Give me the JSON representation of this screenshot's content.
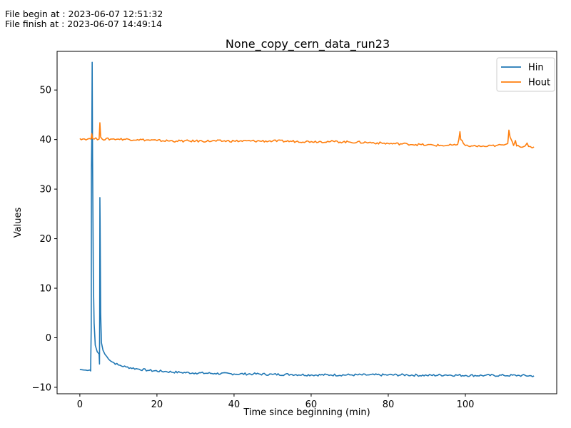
{
  "header": {
    "begin_label": "File begin at : ",
    "begin_time": "2023-06-07 12:51:32",
    "finish_label": "File finish at : ",
    "finish_time": "2023-06-07 14:49:14"
  },
  "chart_data": {
    "type": "line",
    "title": "None_copy_cern_data_run23",
    "xlabel": "Time since beginning (min)",
    "ylabel": "Values",
    "xlim": [
      -5.9,
      123.7
    ],
    "ylim": [
      -11.3,
      57.8
    ],
    "xticks": [
      0,
      20,
      40,
      60,
      80,
      100
    ],
    "yticks": [
      -10,
      0,
      10,
      20,
      30,
      40,
      50
    ],
    "grid": false,
    "legend_position": "top-right",
    "series": [
      {
        "name": "Hin",
        "color": "#1f77b4",
        "points": [
          [
            0,
            -6.4
          ],
          [
            1,
            -6.5
          ],
          [
            2,
            -6.6
          ],
          [
            2.6,
            -6.5
          ],
          [
            2.8,
            -6.7
          ],
          [
            2.95,
            2
          ],
          [
            3.0,
            34
          ],
          [
            3.1,
            40
          ],
          [
            3.2,
            55.6
          ],
          [
            3.3,
            36
          ],
          [
            3.5,
            12
          ],
          [
            3.7,
            3
          ],
          [
            4.0,
            -1.5
          ],
          [
            4.5,
            -2.8
          ],
          [
            5.0,
            -3.3
          ],
          [
            5.1,
            -5.3
          ],
          [
            5.15,
            5
          ],
          [
            5.2,
            28.3
          ],
          [
            5.25,
            24
          ],
          [
            5.4,
            5
          ],
          [
            5.6,
            -1
          ],
          [
            6,
            -2.5
          ],
          [
            7,
            -3.8
          ],
          [
            8,
            -4.7
          ],
          [
            10,
            -5.5
          ],
          [
            12,
            -5.9
          ],
          [
            15,
            -6.3
          ],
          [
            18,
            -6.6
          ],
          [
            22,
            -6.8
          ],
          [
            26,
            -7.0
          ],
          [
            30,
            -7.1
          ],
          [
            35,
            -7.2
          ],
          [
            40,
            -7.3
          ],
          [
            45,
            -7.3
          ],
          [
            50,
            -7.4
          ],
          [
            55,
            -7.4
          ],
          [
            60,
            -7.5
          ],
          [
            65,
            -7.5
          ],
          [
            70,
            -7.5
          ],
          [
            75,
            -7.5
          ],
          [
            80,
            -7.5
          ],
          [
            85,
            -7.5
          ],
          [
            90,
            -7.6
          ],
          [
            95,
            -7.5
          ],
          [
            100,
            -7.6
          ],
          [
            105,
            -7.6
          ],
          [
            110,
            -7.6
          ],
          [
            114,
            -7.6
          ],
          [
            117.8,
            -7.7
          ]
        ]
      },
      {
        "name": "Hout",
        "color": "#ff7f0e",
        "points": [
          [
            0,
            40.2
          ],
          [
            2,
            40.1
          ],
          [
            2.9,
            40.1
          ],
          [
            3.1,
            41.2
          ],
          [
            3.3,
            40.2
          ],
          [
            5.0,
            40.1
          ],
          [
            5.2,
            43.4
          ],
          [
            5.4,
            40.5
          ],
          [
            5.8,
            40.1
          ],
          [
            8,
            40.1
          ],
          [
            10,
            40.1
          ],
          [
            15,
            40.0
          ],
          [
            20,
            39.8
          ],
          [
            25,
            39.7
          ],
          [
            30,
            39.7
          ],
          [
            40,
            39.7
          ],
          [
            50,
            39.7
          ],
          [
            60,
            39.6
          ],
          [
            65,
            39.6
          ],
          [
            70,
            39.5
          ],
          [
            75,
            39.4
          ],
          [
            80,
            39.2
          ],
          [
            85,
            39.1
          ],
          [
            90,
            38.9
          ],
          [
            95,
            38.8
          ],
          [
            97.5,
            38.9
          ],
          [
            98.0,
            39.0
          ],
          [
            98.3,
            40.0
          ],
          [
            98.6,
            41.6
          ],
          [
            98.8,
            40.0
          ],
          [
            99.5,
            39.2
          ],
          [
            100,
            38.8
          ],
          [
            102,
            38.7
          ],
          [
            105,
            38.6
          ],
          [
            108,
            38.8
          ],
          [
            110,
            38.9
          ],
          [
            111,
            39.2
          ],
          [
            111.3,
            41.9
          ],
          [
            111.6,
            40.5
          ],
          [
            112.2,
            39.5
          ],
          [
            112.5,
            38.8
          ],
          [
            113.0,
            39.8
          ],
          [
            113.3,
            38.7
          ],
          [
            114,
            38.6
          ],
          [
            115.5,
            38.7
          ],
          [
            116,
            39.3
          ],
          [
            116.4,
            38.6
          ],
          [
            117.8,
            38.5
          ]
        ]
      }
    ]
  }
}
